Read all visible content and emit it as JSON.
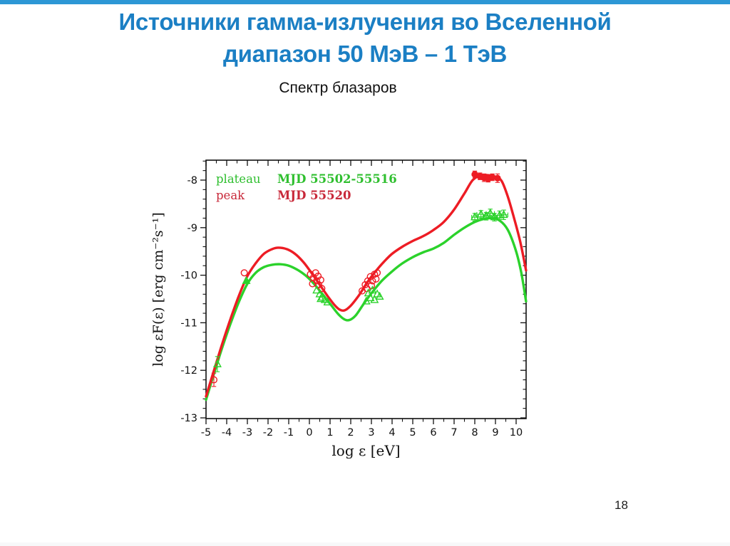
{
  "slide": {
    "title_line1": "Источники гамма-излучения во Вселенной",
    "title_line2": "диапазон 50 МэВ – 1 ТэВ",
    "subtitle": "Спектр блазаров",
    "page_number": "18",
    "accent_color": "#2d97d5",
    "title_color": "#1b7fc4"
  },
  "chart_data": {
    "type": "line",
    "title": "",
    "xlabel": "log ε [eV]",
    "ylabel": "log εF(ε) [erg cm⁻²s⁻¹]",
    "xlim": [
      -5,
      10.5
    ],
    "ylim": [
      -13,
      -7.6
    ],
    "grid": false,
    "x_ticks": [
      -5,
      -4,
      -3,
      -2,
      -1,
      0,
      1,
      2,
      3,
      4,
      5,
      6,
      7,
      8,
      9,
      10
    ],
    "y_ticks": [
      -8,
      -9,
      -10,
      -11,
      -12,
      -13
    ],
    "legend_position": "top-left-inside",
    "legend": [
      {
        "label": "plateau",
        "mjd": "MJD 55502-55516",
        "color": "#2fbf2f"
      },
      {
        "label": "peak",
        "mjd": "MJD 55520",
        "color": "#c8293a"
      }
    ],
    "series": [
      {
        "name": "plateau",
        "color": "#2bd22b",
        "points": [
          [
            -5,
            -12.62
          ],
          [
            -4.6,
            -12.05
          ],
          [
            -4.2,
            -11.5
          ],
          [
            -3.8,
            -11.0
          ],
          [
            -3.4,
            -10.55
          ],
          [
            -3,
            -10.18
          ],
          [
            -2.6,
            -9.95
          ],
          [
            -2.2,
            -9.83
          ],
          [
            -1.8,
            -9.78
          ],
          [
            -1.4,
            -9.77
          ],
          [
            -1,
            -9.8
          ],
          [
            -0.6,
            -9.88
          ],
          [
            -0.2,
            -10.0
          ],
          [
            0.2,
            -10.17
          ],
          [
            0.6,
            -10.38
          ],
          [
            1,
            -10.6
          ],
          [
            1.4,
            -10.82
          ],
          [
            1.7,
            -10.93
          ],
          [
            1.95,
            -10.94
          ],
          [
            2.25,
            -10.84
          ],
          [
            2.6,
            -10.62
          ],
          [
            3,
            -10.38
          ],
          [
            3.5,
            -10.12
          ],
          [
            4,
            -9.92
          ],
          [
            4.5,
            -9.75
          ],
          [
            5,
            -9.62
          ],
          [
            5.5,
            -9.52
          ],
          [
            6,
            -9.44
          ],
          [
            6.5,
            -9.32
          ],
          [
            7,
            -9.15
          ],
          [
            7.5,
            -9.0
          ],
          [
            8,
            -8.88
          ],
          [
            8.4,
            -8.82
          ],
          [
            8.8,
            -8.8
          ],
          [
            9.2,
            -8.85
          ],
          [
            9.6,
            -9.05
          ],
          [
            10,
            -9.5
          ],
          [
            10.25,
            -9.95
          ],
          [
            10.48,
            -10.55
          ]
        ]
      },
      {
        "name": "peak",
        "color": "#ed1c24",
        "points": [
          [
            -5,
            -12.55
          ],
          [
            -4.6,
            -11.98
          ],
          [
            -4.2,
            -11.42
          ],
          [
            -3.8,
            -10.9
          ],
          [
            -3.4,
            -10.42
          ],
          [
            -3,
            -10.02
          ],
          [
            -2.6,
            -9.75
          ],
          [
            -2.2,
            -9.55
          ],
          [
            -1.8,
            -9.45
          ],
          [
            -1.5,
            -9.42
          ],
          [
            -1.1,
            -9.45
          ],
          [
            -0.7,
            -9.55
          ],
          [
            -0.3,
            -9.72
          ],
          [
            0.1,
            -9.95
          ],
          [
            0.5,
            -10.2
          ],
          [
            0.9,
            -10.45
          ],
          [
            1.2,
            -10.62
          ],
          [
            1.45,
            -10.72
          ],
          [
            1.7,
            -10.74
          ],
          [
            2,
            -10.64
          ],
          [
            2.4,
            -10.42
          ],
          [
            2.8,
            -10.15
          ],
          [
            3.2,
            -9.92
          ],
          [
            3.6,
            -9.72
          ],
          [
            4,
            -9.55
          ],
          [
            4.5,
            -9.4
          ],
          [
            5,
            -9.28
          ],
          [
            5.5,
            -9.18
          ],
          [
            6,
            -9.05
          ],
          [
            6.5,
            -8.88
          ],
          [
            7,
            -8.62
          ],
          [
            7.5,
            -8.28
          ],
          [
            7.9,
            -8.0
          ],
          [
            8.3,
            -7.9
          ],
          [
            8.7,
            -7.9
          ],
          [
            9,
            -7.93
          ],
          [
            9.3,
            -8.02
          ],
          [
            9.6,
            -8.35
          ],
          [
            9.9,
            -8.8
          ],
          [
            10.2,
            -9.3
          ],
          [
            10.48,
            -9.9
          ]
        ]
      }
    ],
    "markers": [
      {
        "series": "peak",
        "shape": "circle-open",
        "color": "#ed1c24",
        "points": [
          [
            -4.62,
            -12.2,
            0.14
          ],
          [
            -3.15,
            -9.95
          ],
          [
            0.05,
            -9.98
          ],
          [
            0.2,
            -10.05
          ],
          [
            0.35,
            -10.12
          ],
          [
            0.15,
            -10.18
          ],
          [
            0.45,
            -10.2
          ],
          [
            0.55,
            -10.1
          ],
          [
            0.3,
            -9.95
          ],
          [
            0.6,
            -10.28
          ],
          [
            0.42,
            -10.02
          ],
          [
            2.55,
            -10.33
          ],
          [
            2.7,
            -10.2
          ],
          [
            2.82,
            -10.12
          ],
          [
            2.95,
            -10.03
          ],
          [
            3.05,
            -10.12
          ],
          [
            3.15,
            -9.98
          ],
          [
            3.28,
            -9.95
          ],
          [
            2.78,
            -10.28
          ],
          [
            3.0,
            -10.22
          ],
          [
            3.22,
            -10.08
          ]
        ]
      },
      {
        "series": "peak",
        "shape": "circle-filled",
        "color": "#ed1c24",
        "points": [
          [
            8.0,
            -7.88,
            0.07
          ],
          [
            8.25,
            -7.92,
            0.07
          ],
          [
            8.45,
            -7.95,
            0.08
          ],
          [
            8.65,
            -7.97,
            0.07
          ],
          [
            8.85,
            -7.94,
            0.07
          ],
          [
            9.1,
            -7.96,
            0.09
          ]
        ]
      },
      {
        "series": "plateau",
        "shape": "triangle-filled",
        "color": "#2bd22b",
        "points": [
          [
            -3.05,
            -10.12
          ]
        ]
      },
      {
        "series": "plateau",
        "shape": "triangle-open",
        "color": "#2bd22b",
        "points": [
          [
            -4.45,
            -11.87,
            0.16
          ],
          [
            0.35,
            -10.32
          ],
          [
            0.5,
            -10.4
          ],
          [
            0.62,
            -10.47
          ],
          [
            0.75,
            -10.52
          ],
          [
            0.88,
            -10.57
          ],
          [
            0.55,
            -10.5
          ],
          [
            2.85,
            -10.38
          ],
          [
            2.95,
            -10.48
          ],
          [
            3.05,
            -10.32
          ],
          [
            3.15,
            -10.52
          ],
          [
            3.28,
            -10.4
          ],
          [
            3.4,
            -10.45
          ],
          [
            2.75,
            -10.55
          ],
          [
            8.0,
            -8.78,
            0.08,
            0.15
          ],
          [
            8.3,
            -8.72,
            0.08,
            0.2
          ],
          [
            8.55,
            -8.76,
            0.08,
            0.15
          ],
          [
            8.75,
            -8.7,
            0.09,
            0.2
          ],
          [
            8.95,
            -8.78,
            0.08,
            0.15
          ],
          [
            9.2,
            -8.74,
            0.09,
            0.2
          ],
          [
            9.4,
            -8.73,
            0.1,
            0.2
          ]
        ]
      }
    ]
  }
}
